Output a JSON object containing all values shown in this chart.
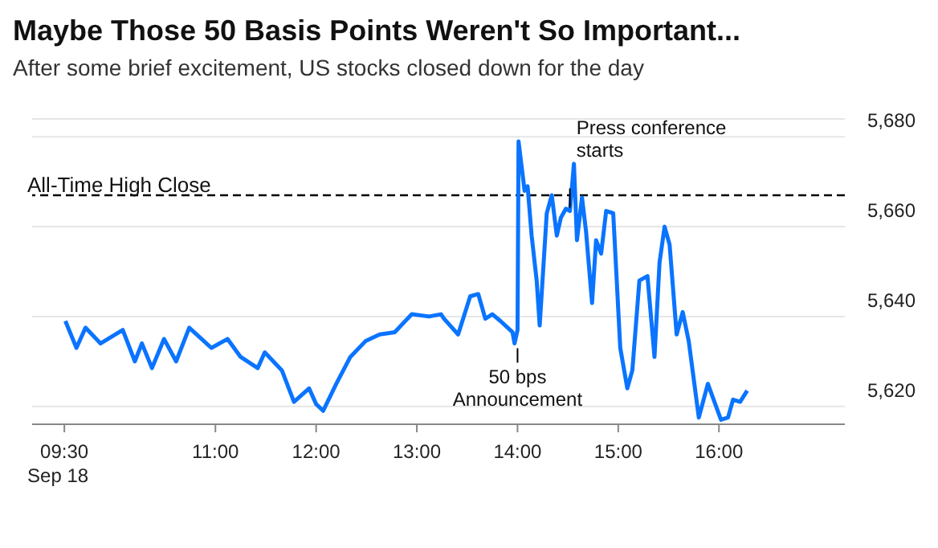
{
  "chart_data": {
    "type": "line",
    "title": "Maybe Those 50 Basis Points Weren't So Important...",
    "subtitle": "After some brief excitement, US stocks closed down for the day",
    "x": [
      9.51,
      9.62,
      9.71,
      9.86,
      10.08,
      10.2,
      10.27,
      10.37,
      10.49,
      10.61,
      10.74,
      10.96,
      11.12,
      11.25,
      11.42,
      11.49,
      11.66,
      11.78,
      11.93,
      12.0,
      12.07,
      12.2,
      12.34,
      12.49,
      12.63,
      12.78,
      12.95,
      13.12,
      13.24,
      13.27,
      13.41,
      13.53,
      13.61,
      13.68,
      13.75,
      13.83,
      13.95,
      13.97,
      14.0,
      14.01,
      14.07,
      14.1,
      14.14,
      14.19,
      14.22,
      14.29,
      14.34,
      14.39,
      14.43,
      14.48,
      14.52,
      14.56,
      14.59,
      14.64,
      14.68,
      14.74,
      14.78,
      14.83,
      14.88,
      14.95,
      15.02,
      15.09,
      15.14,
      15.21,
      15.29,
      15.36,
      15.41,
      15.46,
      15.51,
      15.58,
      15.64,
      15.7,
      15.8,
      15.89,
      16.02,
      16.09,
      16.14,
      16.21,
      16.28
    ],
    "series": [
      {
        "color": "#0a74ff",
        "values": [
          5639,
          5633,
          5637.5,
          5634,
          5637,
          5630,
          5634,
          5628.5,
          5635,
          5630,
          5637.5,
          5633,
          5635,
          5631,
          5628.5,
          5632,
          5628,
          5621,
          5624,
          5620.5,
          5619,
          5625,
          5631,
          5634.5,
          5636,
          5636.5,
          5640.5,
          5640,
          5640.5,
          5639.5,
          5636,
          5644.5,
          5645,
          5639.5,
          5640.5,
          5639,
          5636.5,
          5634,
          5637,
          5679,
          5668,
          5669,
          5658,
          5648,
          5638,
          5663,
          5667,
          5658,
          5662,
          5664,
          5663.5,
          5674,
          5657,
          5666.5,
          5659,
          5643,
          5657,
          5654,
          5663.5,
          5663,
          5633,
          5624,
          5628,
          5648,
          5649,
          5631,
          5652,
          5660,
          5656,
          5636,
          5641,
          5634.5,
          5617.5,
          5625,
          5617,
          5617.5,
          5621.5,
          5621,
          5623.5
        ]
      }
    ],
    "xlim": [
      9.18,
      17.25
    ],
    "xticks": [
      {
        "value": 9.5,
        "label": "09:30\nSep 18"
      },
      {
        "value": 11,
        "label": "11:00"
      },
      {
        "value": 12,
        "label": "12:00"
      },
      {
        "value": 13,
        "label": "13:00"
      },
      {
        "value": 14,
        "label": "14:00"
      },
      {
        "value": 15,
        "label": "15:00"
      },
      {
        "value": 16,
        "label": "16:00"
      }
    ],
    "ylim": [
      5616,
      5684
    ],
    "yticks": [
      {
        "value": 5620,
        "label": "5,620"
      },
      {
        "value": 5640,
        "label": "5,640"
      },
      {
        "value": 5660,
        "label": "5,660"
      },
      {
        "value": 5680,
        "label": "5,680"
      }
    ],
    "grid": "y",
    "legend": false,
    "marker": "none",
    "line_style": "solid",
    "ref_lines": [
      {
        "axis": "y",
        "value": 5667,
        "label": "All-Time High Close",
        "color": "#000000",
        "line_style": "dashed"
      }
    ],
    "annotations": [
      {
        "text": "50 bps Announcement",
        "x": 14.0,
        "y": 5634
      },
      {
        "text": "Press conference starts",
        "x": 14.52,
        "y": 5663.5
      }
    ]
  }
}
